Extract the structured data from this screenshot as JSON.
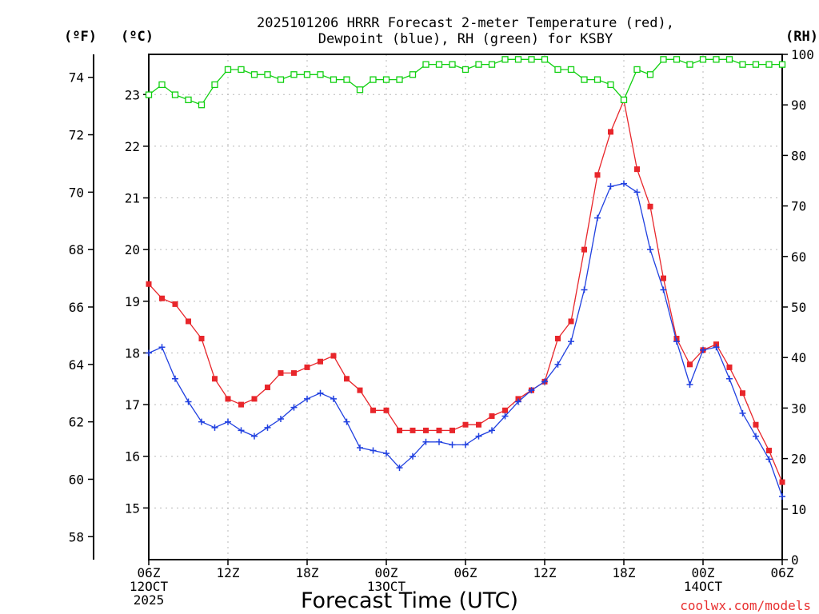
{
  "chart_data": {
    "type": "line",
    "title_line1": "2025101206 HRRR Forecast 2-meter Temperature (red),",
    "title_line2": "Dewpoint (blue), RH (green) for KSBY",
    "xlabel": "Forecast Time (UTC)",
    "credit": "coolwx.com/models",
    "units": {
      "f": "(ºF)",
      "c": "(ºC)",
      "rh": "(RH)"
    },
    "x_hours": [
      0,
      1,
      2,
      3,
      4,
      5,
      6,
      7,
      8,
      9,
      10,
      11,
      12,
      13,
      14,
      15,
      16,
      17,
      18,
      19,
      20,
      21,
      22,
      23,
      24,
      25,
      26,
      27,
      28,
      29,
      30,
      31,
      32,
      33,
      34,
      35,
      36,
      37,
      38,
      39,
      40,
      41,
      42,
      43,
      44,
      45,
      46,
      47,
      48
    ],
    "xlim": [
      0,
      48
    ],
    "x_ticks": [
      {
        "hour": 0,
        "lines": [
          "06Z",
          "12OCT",
          "2025"
        ]
      },
      {
        "hour": 6,
        "lines": [
          "12Z"
        ]
      },
      {
        "hour": 12,
        "lines": [
          "18Z"
        ]
      },
      {
        "hour": 18,
        "lines": [
          "00Z",
          "13OCT"
        ]
      },
      {
        "hour": 24,
        "lines": [
          "06Z"
        ]
      },
      {
        "hour": 30,
        "lines": [
          "12Z"
        ]
      },
      {
        "hour": 36,
        "lines": [
          "18Z"
        ]
      },
      {
        "hour": 42,
        "lines": [
          "00Z",
          "14OCT"
        ]
      },
      {
        "hour": 48,
        "lines": [
          "06Z"
        ]
      }
    ],
    "ylim_f": [
      57.2,
      74.8
    ],
    "f_ticks": [
      "58",
      "60",
      "62",
      "64",
      "66",
      "68",
      "70",
      "72",
      "74"
    ],
    "c_ticks": [
      "15",
      "16",
      "17",
      "18",
      "19",
      "20",
      "21",
      "22",
      "23"
    ],
    "rh_ticks": [
      "0",
      "10",
      "20",
      "30",
      "40",
      "50",
      "60",
      "70",
      "80",
      "90",
      "100"
    ],
    "ylim_rh": [
      0,
      100
    ],
    "series": [
      {
        "name": "Temperature",
        "unit": "F",
        "color": "#e8262b",
        "marker": "square",
        "values": [
          66.8,
          66.3,
          66.1,
          65.5,
          64.9,
          63.5,
          62.8,
          62.6,
          62.8,
          63.2,
          63.7,
          63.7,
          63.9,
          64.1,
          64.3,
          63.5,
          63.1,
          62.4,
          62.4,
          61.7,
          61.7,
          61.7,
          61.7,
          61.7,
          61.9,
          61.9,
          62.2,
          62.4,
          62.8,
          63.1,
          63.4,
          64.9,
          65.5,
          68.0,
          70.6,
          72.1,
          73.2,
          70.8,
          69.5,
          67.0,
          64.9,
          64.0,
          64.5,
          64.7,
          63.9,
          63.0,
          61.9,
          61.0,
          59.9
        ]
      },
      {
        "name": "Dewpoint",
        "unit": "F",
        "color": "#2040e0",
        "marker": "plus",
        "values": [
          64.4,
          64.6,
          63.5,
          62.7,
          62.0,
          61.8,
          62.0,
          61.7,
          61.5,
          61.8,
          62.1,
          62.5,
          62.8,
          63.0,
          62.8,
          62.0,
          61.1,
          61.0,
          60.9,
          60.4,
          60.8,
          61.3,
          61.3,
          61.2,
          61.2,
          61.5,
          61.7,
          62.2,
          62.7,
          63.1,
          63.4,
          64.0,
          64.8,
          66.6,
          69.1,
          70.2,
          70.3,
          70.0,
          68.0,
          66.6,
          64.8,
          63.3,
          64.5,
          64.6,
          63.5,
          62.3,
          61.5,
          60.7,
          59.4
        ]
      },
      {
        "name": "RH",
        "unit": "RH",
        "color": "#10d010",
        "marker": "open-square",
        "values": [
          92,
          94,
          92,
          91,
          90,
          94,
          97,
          97,
          96,
          96,
          95,
          96,
          96,
          96,
          95,
          95,
          93,
          95,
          95,
          95,
          96,
          98,
          98,
          98,
          97,
          98,
          98,
          99,
          99,
          99,
          99,
          97,
          97,
          95,
          95,
          94,
          91,
          97,
          96,
          99,
          99,
          98,
          99,
          99,
          99,
          98,
          98,
          98,
          98
        ]
      }
    ]
  }
}
